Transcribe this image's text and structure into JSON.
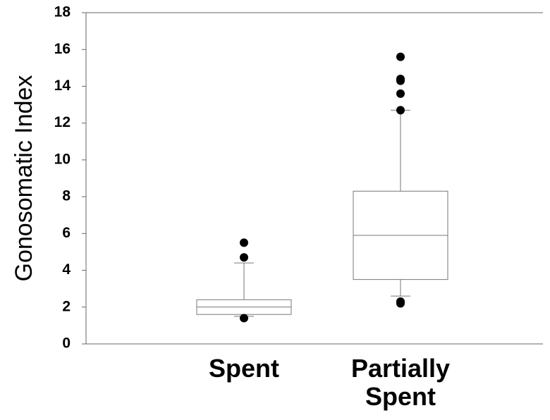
{
  "chart_data": {
    "type": "box",
    "y_label": "Gonosomatic Index",
    "categories": [
      "Spent",
      "Partially Spent"
    ],
    "boxes": [
      {
        "min": 1.5,
        "q1": 1.6,
        "median": 2.0,
        "q3": 2.4,
        "max": 4.4,
        "outliers": [
          1.4,
          4.7,
          5.5
        ]
      },
      {
        "min": 2.6,
        "q1": 3.5,
        "median": 5.9,
        "q3": 8.3,
        "max": 12.7,
        "outliers": [
          2.2,
          2.3,
          12.7,
          13.6,
          14.3,
          14.4,
          15.6
        ]
      }
    ],
    "ylim": [
      0,
      18
    ],
    "yticks": [
      0,
      2,
      4,
      6,
      8,
      10,
      12,
      14,
      16,
      18
    ]
  }
}
